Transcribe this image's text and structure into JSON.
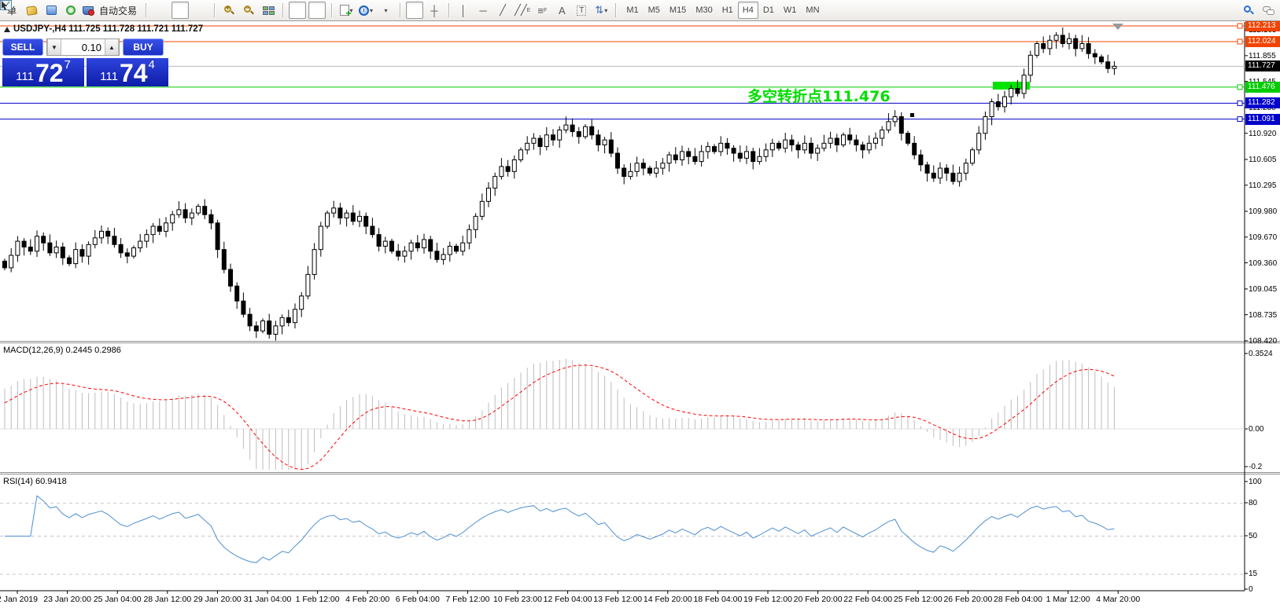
{
  "toolbar": {
    "new_order_label": "单",
    "autotrading_label": "自动交易",
    "timeframes": [
      "M1",
      "M5",
      "M15",
      "M30",
      "H1",
      "H4",
      "D1",
      "W1",
      "MN"
    ],
    "active_timeframe": "H4",
    "text_tool_label": "A",
    "label_tool_label": "T",
    "channel_tool_label": "E",
    "fibo_tool_label": "F"
  },
  "chart": {
    "title": "USDJPY-,H4 111.725 111.728 111.721 111.727",
    "symbol": "USDJPY-",
    "period": "H4",
    "open": "111.725",
    "high": "111.728",
    "low": "111.721",
    "close": "111.727"
  },
  "trade_panel": {
    "sell_label": "SELL",
    "buy_label": "BUY",
    "volume": "0.10",
    "sell_price_small": "111",
    "sell_price_big": "72",
    "sell_price_sup": "7",
    "buy_price_small": "111",
    "buy_price_big": "74",
    "buy_price_sup": "4"
  },
  "annotation": {
    "text": "多空转折点111.476",
    "color": "#00dd00"
  },
  "macd_panel": {
    "label": "MACD(12,26,9) 0.2445 0.2986"
  },
  "rsi_panel": {
    "label": "RSI(14) 60.9418"
  },
  "chart_data": {
    "type": "candlestick",
    "symbol": "USDJPY-",
    "timeframe": "H4",
    "price_axis_ticks": [
      "112.165",
      "111.855",
      "111.545",
      "111.230",
      "110.920",
      "110.605",
      "110.295",
      "109.980",
      "109.670",
      "109.360",
      "109.045",
      "108.735",
      "108.420"
    ],
    "levels": [
      {
        "price": 112.213,
        "label": "112.213",
        "color": "#f24400",
        "kind": "line"
      },
      {
        "price": 112.024,
        "label": "112.024",
        "color": "#f24400",
        "kind": "line"
      },
      {
        "price": 111.727,
        "label": "111.727",
        "color": "#b8b8b8",
        "label_bg": "#000000",
        "kind": "current"
      },
      {
        "price": 111.476,
        "label": "111.476",
        "color": "#00cc00",
        "kind": "line"
      },
      {
        "price": 111.282,
        "label": "111.282",
        "color": "#0000cc",
        "kind": "line"
      },
      {
        "price": 111.091,
        "label": "111.091",
        "color": "#0000cc",
        "kind": "line"
      }
    ],
    "macd": {
      "fast": 12,
      "slow": 26,
      "signal": 9,
      "axis_ticks": [
        "0.3524",
        "0.00",
        "-0.2"
      ],
      "current_main": "0.2445",
      "current_signal": "0.2986"
    },
    "rsi": {
      "period": 14,
      "axis_ticks": [
        "100",
        "80",
        "50",
        "15",
        "0"
      ],
      "dashed_levels": [
        80,
        50,
        15
      ],
      "current": "60.9418"
    },
    "time_labels": [
      "2 Jan 2019",
      "23 Jan 20:00",
      "25 Jan 04:00",
      "28 Jan 12:00",
      "29 Jan 20:00",
      "31 Jan 04:00",
      "1 Feb 12:00",
      "4 Feb 20:00",
      "6 Feb 04:00",
      "7 Feb 12:00",
      "10 Feb 23:00",
      "12 Feb 04:00",
      "13 Feb 12:00",
      "14 Feb 20:00",
      "18 Feb 04:00",
      "19 Feb 12:00",
      "20 Feb 20:00",
      "22 Feb 04:00",
      "25 Feb 12:00",
      "26 Feb 20:00",
      "28 Feb 04:00",
      "1 Mar 12:00",
      "4 Mar 20:00"
    ],
    "first_open": 109.38,
    "warmup_closes": [
      108.55,
      108.7,
      108.85,
      109.0,
      109.12,
      109.22,
      109.3,
      109.35,
      109.38
    ],
    "closes": [
      109.3,
      109.45,
      109.62,
      109.55,
      109.5,
      109.68,
      109.6,
      109.48,
      109.55,
      109.42,
      109.35,
      109.52,
      109.44,
      109.58,
      109.66,
      109.74,
      109.68,
      109.58,
      109.48,
      109.44,
      109.54,
      109.62,
      109.7,
      109.8,
      109.74,
      109.84,
      109.94,
      110.0,
      109.9,
      109.96,
      110.04,
      109.94,
      109.84,
      109.52,
      109.28,
      109.08,
      108.9,
      108.74,
      108.6,
      108.54,
      108.66,
      108.5,
      108.6,
      108.7,
      108.64,
      108.8,
      108.96,
      109.22,
      109.52,
      109.8,
      109.96,
      110.02,
      109.9,
      109.96,
      109.86,
      109.92,
      109.8,
      109.7,
      109.56,
      109.62,
      109.5,
      109.44,
      109.5,
      109.6,
      109.54,
      109.64,
      109.5,
      109.4,
      109.46,
      109.56,
      109.5,
      109.6,
      109.76,
      109.92,
      110.1,
      110.26,
      110.4,
      110.52,
      110.46,
      110.6,
      110.72,
      110.8,
      110.86,
      110.76,
      110.9,
      110.84,
      110.96,
      111.02,
      110.94,
      110.88,
      111.0,
      110.9,
      110.78,
      110.84,
      110.68,
      110.5,
      110.4,
      110.46,
      110.56,
      110.5,
      110.44,
      110.5,
      110.56,
      110.66,
      110.6,
      110.7,
      110.64,
      110.58,
      110.7,
      110.76,
      110.7,
      110.8,
      110.74,
      110.68,
      110.62,
      110.7,
      110.58,
      110.64,
      110.72,
      110.8,
      110.74,
      110.84,
      110.78,
      110.72,
      110.8,
      110.68,
      110.74,
      110.8,
      110.86,
      110.78,
      110.9,
      110.84,
      110.78,
      110.72,
      110.8,
      110.86,
      110.96,
      111.06,
      111.12,
      110.92,
      110.8,
      110.66,
      110.54,
      110.44,
      110.38,
      110.5,
      110.44,
      110.34,
      110.44,
      110.56,
      110.72,
      110.92,
      111.12,
      111.3,
      111.24,
      111.36,
      111.46,
      111.4,
      111.62,
      111.86,
      112.0,
      111.94,
      112.04,
      112.1,
      112.0,
      112.06,
      111.94,
      112.0,
      111.88,
      111.84,
      111.78,
      111.7,
      111.727
    ]
  }
}
